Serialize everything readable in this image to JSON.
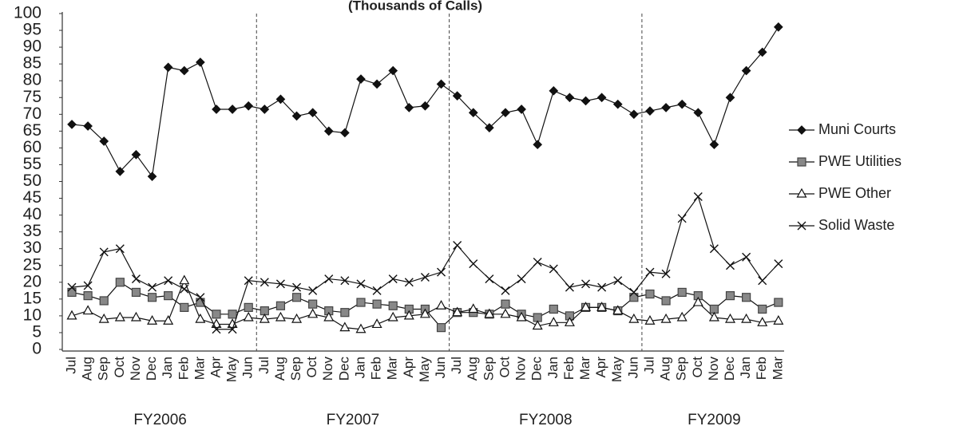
{
  "chart_data": {
    "type": "line",
    "title": "(Thousands of Calls)",
    "categories": [
      "Jul",
      "Aug",
      "Sep",
      "Oct",
      "Nov",
      "Dec",
      "Jan",
      "Feb",
      "Mar",
      "Apr",
      "May",
      "Jun",
      "Jul",
      "Aug",
      "Sep",
      "Oct",
      "Nov",
      "Dec",
      "Jan",
      "Feb",
      "Mar",
      "Apr",
      "May",
      "Jun",
      "Jul",
      "Aug",
      "Sep",
      "Oct",
      "Nov",
      "Dec",
      "Jan",
      "Feb",
      "Mar",
      "Apr",
      "May",
      "Jun",
      "Jul",
      "Aug",
      "Sep",
      "Oct",
      "Nov",
      "Dec",
      "Jan",
      "Feb",
      "Mar"
    ],
    "groups": [
      "FY2006",
      "FY2007",
      "FY2008",
      "FY2009"
    ],
    "series": [
      {
        "name": "Muni Courts",
        "color": "#111111",
        "marker": "diamond",
        "values": [
          67,
          66.5,
          62,
          53,
          58,
          51.5,
          84,
          83,
          85.5,
          71.5,
          71.5,
          72.5,
          71.5,
          74.5,
          69.5,
          70.5,
          65,
          64.5,
          80.5,
          79,
          83,
          72,
          72.5,
          79,
          75.5,
          70.5,
          66,
          70.5,
          71.5,
          61,
          77,
          75,
          74,
          75,
          73,
          70,
          71,
          72,
          73,
          70.5,
          61,
          75,
          83,
          88.5,
          96
        ]
      },
      {
        "name": "PWE  Utilities",
        "color": "#888888",
        "marker": "square",
        "values": [
          17,
          16,
          14.5,
          20,
          17,
          15.5,
          16,
          12.5,
          14,
          10.5,
          10.5,
          12.5,
          11.5,
          13,
          15.5,
          13.5,
          11.5,
          11,
          14,
          13.5,
          13,
          12,
          12,
          6.5,
          11,
          11,
          10.5,
          13.5,
          10.5,
          9.5,
          12,
          10,
          12.5,
          12.5,
          11.5,
          15.5,
          16.5,
          14.5,
          17,
          16,
          12,
          16,
          15.5,
          12,
          14
        ]
      },
      {
        "name": "PWE Other",
        "color": "#ffffff",
        "marker": "triangle",
        "values": [
          10,
          11.5,
          9,
          9.5,
          9.5,
          8.5,
          8.5,
          20.5,
          9,
          7.5,
          7.5,
          9.5,
          9,
          9.5,
          9,
          10.5,
          9.5,
          6.5,
          6,
          7.5,
          9.5,
          10,
          10.5,
          13,
          11,
          12,
          10.5,
          10.5,
          9.5,
          7,
          8,
          8,
          12.5,
          12.5,
          11.5,
          9,
          8.5,
          9,
          9.5,
          14,
          9.5,
          9,
          9,
          8,
          8.5
        ]
      },
      {
        "name": "Solid Waste",
        "color": "#111111",
        "marker": "x",
        "values": [
          18.5,
          19,
          29,
          30,
          21,
          18.5,
          20.5,
          18,
          15.5,
          6,
          6,
          20.5,
          20,
          19.5,
          18.5,
          17.5,
          21,
          20.5,
          19.5,
          17.5,
          21,
          20,
          21.5,
          23,
          31,
          25.5,
          21,
          17.5,
          21,
          26,
          24,
          18.5,
          19.5,
          18.5,
          20.5,
          17,
          23,
          22.5,
          39,
          45.5,
          30,
          25,
          27.5,
          20.5,
          25.5
        ]
      }
    ],
    "ylim": [
      0,
      100
    ],
    "yticks": [
      0,
      5,
      10,
      15,
      20,
      25,
      30,
      35,
      40,
      45,
      50,
      55,
      60,
      65,
      70,
      75,
      80,
      85,
      90,
      95,
      100
    ],
    "legend": "right"
  }
}
